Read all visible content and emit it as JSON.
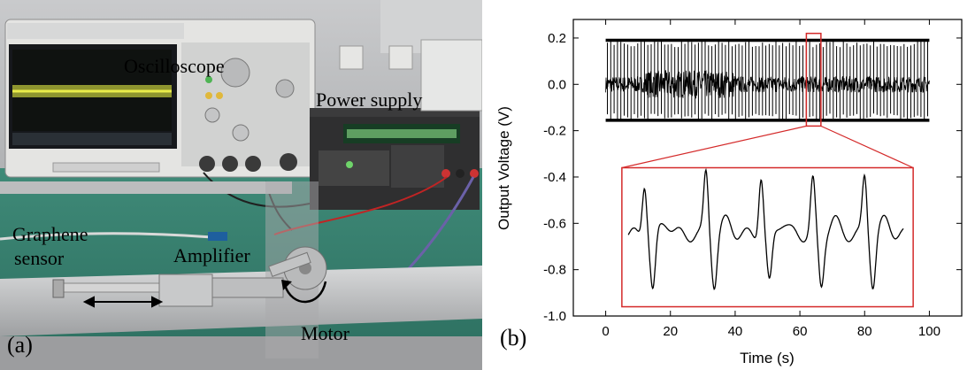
{
  "photo": {
    "panel_label": "(a)",
    "labels": {
      "oscilloscope": "Oscilloscope",
      "power_supply": "Power supply",
      "graphene_line1": "Graphene",
      "graphene_line2": "sensor",
      "amplifier": "Amplifier",
      "motor": "Motor"
    }
  },
  "plot": {
    "panel_label": "(b)"
  },
  "chart_data": {
    "type": "line",
    "xlabel": "Time (s)",
    "ylabel": "Output Voltage (V)",
    "xlim": [
      -10,
      110
    ],
    "ylim": [
      -1.0,
      0.28
    ],
    "xticks": [
      0,
      20,
      40,
      60,
      80,
      100
    ],
    "yticks": [
      0.2,
      0.0,
      -0.2,
      -0.4,
      -0.6,
      -0.8,
      -1.0
    ],
    "xtick_labels": [
      "0",
      "20",
      "40",
      "60",
      "80",
      "100"
    ],
    "ytick_labels": [
      "0.2",
      "0.0",
      "-0.2",
      "-0.4",
      "-0.6",
      "-0.8",
      "-1.0"
    ],
    "signal": {
      "x_range": [
        0,
        100
      ],
      "spike_max": 0.19,
      "spike_min": -0.155,
      "baseline": 0.0,
      "spike_count": 96
    },
    "highlight_box": {
      "x": [
        62,
        66.5
      ],
      "y": [
        -0.18,
        0.22
      ]
    },
    "inset": {
      "box_x": [
        5,
        95
      ],
      "box_y": [
        -0.96,
        -0.36
      ],
      "waveform_x_range": [
        7,
        92
      ],
      "peaks": [
        {
          "x": 12,
          "y": -0.42,
          "min": -0.9
        },
        {
          "x": 31,
          "y": -0.38,
          "min": -0.86
        },
        {
          "x": 48,
          "y": -0.39,
          "min": -0.87
        },
        {
          "x": 64,
          "y": -0.42,
          "min": -0.87
        },
        {
          "x": 80,
          "y": -0.4,
          "min": -0.86
        }
      ],
      "baseline": -0.65
    },
    "colors": {
      "highlight": "#d42a2a",
      "line": "#000000"
    }
  }
}
